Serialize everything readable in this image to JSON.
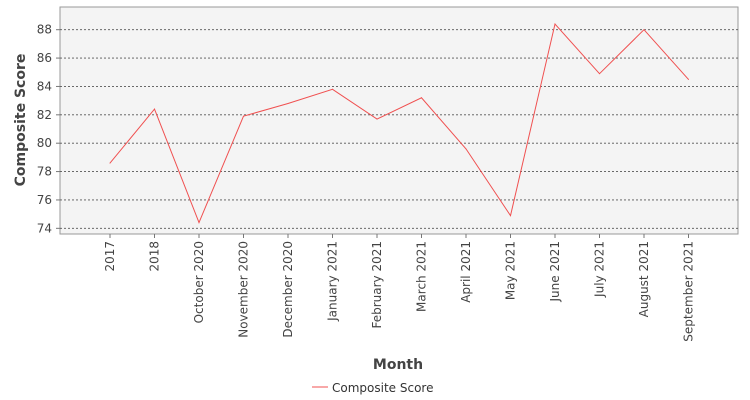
{
  "chart_data": {
    "type": "line",
    "title": "",
    "xlabel": "Month",
    "ylabel": "Composite Score",
    "categories": [
      "2017",
      "2018",
      "October 2020",
      "November 2020",
      "December 2020",
      "January 2021",
      "February 2021",
      "March 2021",
      "April 2021",
      "May 2021",
      "June 2021",
      "July 2021",
      "August 2021",
      "September 2021"
    ],
    "series": [
      {
        "name": "Composite Score",
        "color": "#f05050",
        "values": [
          78.6,
          82.4,
          74.4,
          81.9,
          82.8,
          83.8,
          81.7,
          83.2,
          79.6,
          74.9,
          88.4,
          84.9,
          88.0,
          84.5
        ]
      }
    ],
    "ylim": [
      73.6,
      89.6
    ],
    "yticks": [
      74,
      76,
      78,
      80,
      82,
      84,
      86,
      88
    ],
    "grid": true,
    "legend_position": "bottom-center",
    "plot_background": "#f4f4f4",
    "grid_color": "#555555"
  }
}
